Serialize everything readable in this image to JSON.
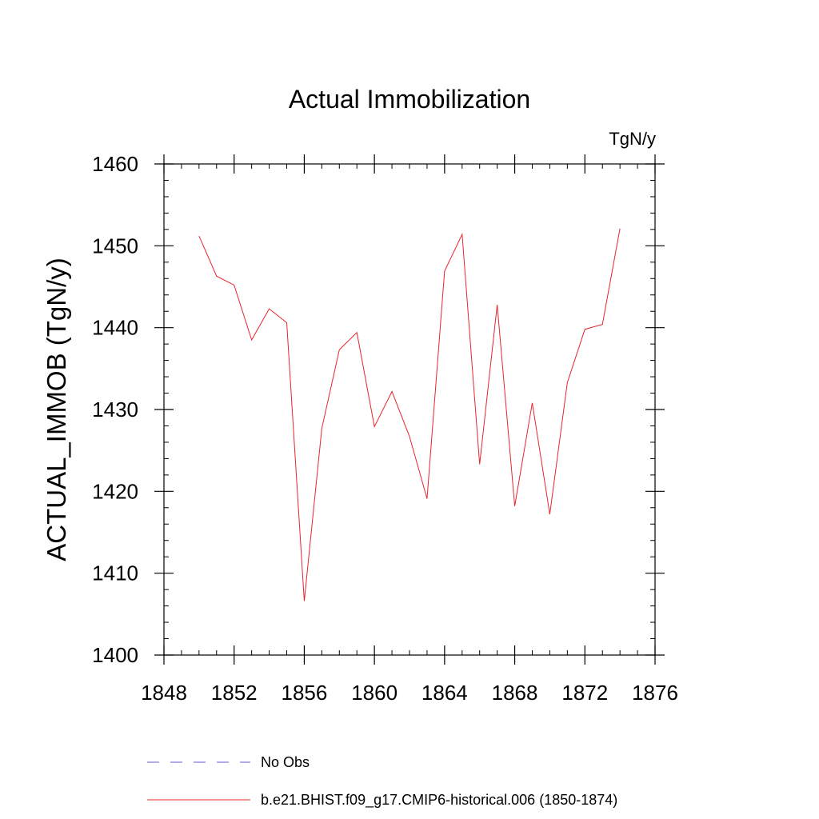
{
  "chart_data": {
    "type": "line",
    "title": "Actual Immobilization",
    "units_label": "TgN/y",
    "ylabel": "ACTUAL_IMMOB  (TgN/y)",
    "xlabel": "",
    "xlim": [
      1848,
      1876
    ],
    "ylim": [
      1400,
      1460
    ],
    "x_ticks": [
      1848,
      1852,
      1856,
      1860,
      1864,
      1868,
      1872,
      1876
    ],
    "y_ticks": [
      1400,
      1410,
      1420,
      1430,
      1440,
      1450,
      1460
    ],
    "x_ticks_text": [
      "1848",
      "1852",
      "1856",
      "1860",
      "1864",
      "1868",
      "1872",
      "1876"
    ],
    "y_ticks_text": [
      "1400",
      "1410",
      "1420",
      "1430",
      "1440",
      "1450",
      "1460"
    ],
    "grid": false,
    "legend_position": "bottom",
    "x": [
      1850,
      1851,
      1852,
      1853,
      1854,
      1855,
      1856,
      1857,
      1858,
      1859,
      1860,
      1861,
      1862,
      1863,
      1864,
      1865,
      1866,
      1867,
      1868,
      1869,
      1870,
      1871,
      1872,
      1873,
      1874
    ],
    "series": [
      {
        "name": "b.e21.BHIST.f09_g17.CMIP6-historical.006 (1850-1874)",
        "color": "#e8242c",
        "style": "solid",
        "values": [
          1451.2,
          1446.3,
          1445.2,
          1438.5,
          1442.3,
          1440.6,
          1406.6,
          1427.7,
          1437.3,
          1439.4,
          1427.9,
          1432.2,
          1426.7,
          1419.1,
          1446.9,
          1451.4,
          1423.3,
          1442.8,
          1418.2,
          1430.8,
          1417.2,
          1433.3,
          1439.8,
          1440.4,
          1452.1
        ]
      }
    ],
    "legend": [
      {
        "label": "No Obs",
        "color": "#6a5acd",
        "style": "dashed"
      },
      {
        "label": "b.e21.BHIST.f09_g17.CMIP6-historical.006 (1850-1874)",
        "color": "#e8242c",
        "style": "solid"
      }
    ]
  }
}
